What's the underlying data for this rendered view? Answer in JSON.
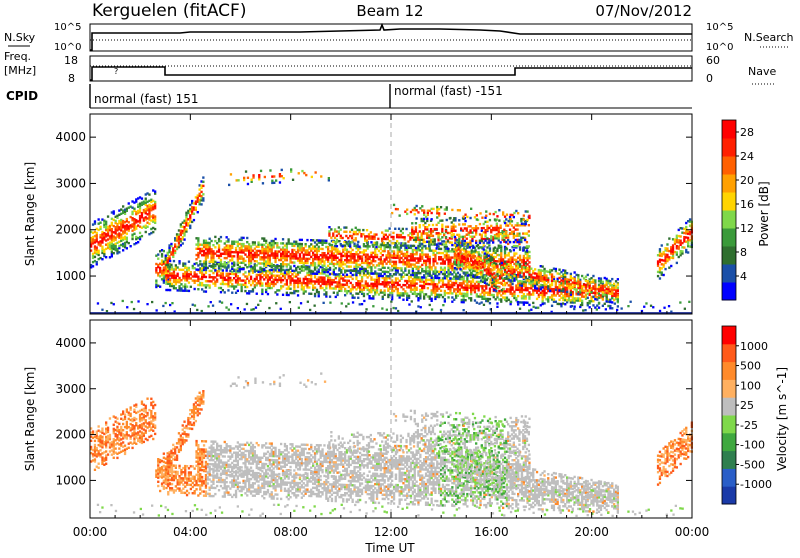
{
  "header": {
    "site": "Kerguelen (fitACF)",
    "beam": "Beam 12",
    "date": "07/Nov/2012"
  },
  "top_panels": {
    "nsky_label": "N.Sky",
    "nsky_ticks": [
      "10^5",
      "10^0"
    ],
    "nsearch_label": "N.Search",
    "nsearch_ticks": [
      "10^5",
      "10^0"
    ],
    "freq_label_1": "Freq.",
    "freq_label_2": "[MHz]",
    "freq_ticks": [
      "18",
      "8"
    ],
    "nave_label": "Nave",
    "nave_ticks": [
      "60",
      "0"
    ],
    "cpid_label": "CPID",
    "cpid_segments": [
      "normal (fast) 151",
      "normal (fast) -151"
    ]
  },
  "colors": {
    "power": [
      "#0000ff",
      "#1a4fa8",
      "#2f6f2f",
      "#3a9a3a",
      "#7fd84a",
      "#ffd400",
      "#ffa000",
      "#ff6000",
      "#ff2000",
      "#ff0000"
    ],
    "velocity": [
      "#1a3aa8",
      "#2a5ec8",
      "#2f7f4f",
      "#3fa83f",
      "#7fd84a",
      "#bebebe",
      "#ffb060",
      "#ff8a2a",
      "#ff5a1a",
      "#ff0000"
    ]
  },
  "chart_data": [
    {
      "type": "heatmap",
      "title": "",
      "xlabel": "Time UT",
      "ylabel": "Slant Range [km]",
      "x_ticks": [
        "00:00",
        "04:00",
        "08:00",
        "12:00",
        "16:00",
        "20:00",
        "00:00"
      ],
      "xlim_hours": [
        0,
        24
      ],
      "ylim_km": [
        180,
        4500
      ],
      "y_ticks": [
        1000,
        2000,
        3000,
        4000
      ],
      "colorbar_label": "Power [dB]",
      "colorbar_ticks": [
        4,
        8,
        12,
        16,
        20,
        24,
        28
      ],
      "colorbar_range": [
        0,
        30
      ],
      "grid": false
    },
    {
      "type": "heatmap",
      "title": "",
      "xlabel": "Time UT",
      "ylabel": "Slant Range [km]",
      "x_ticks": [
        "00:00",
        "04:00",
        "08:00",
        "12:00",
        "16:00",
        "20:00",
        "00:00"
      ],
      "xlim_hours": [
        0,
        24
      ],
      "ylim_km": [
        180,
        4500
      ],
      "y_ticks": [
        1000,
        2000,
        3000,
        4000
      ],
      "colorbar_label": "Velocity [m s^-1]",
      "colorbar_ticks": [
        "1000",
        "500",
        "100",
        "25",
        "-25",
        "-100",
        "-500",
        "-1000"
      ],
      "grid": false
    }
  ]
}
